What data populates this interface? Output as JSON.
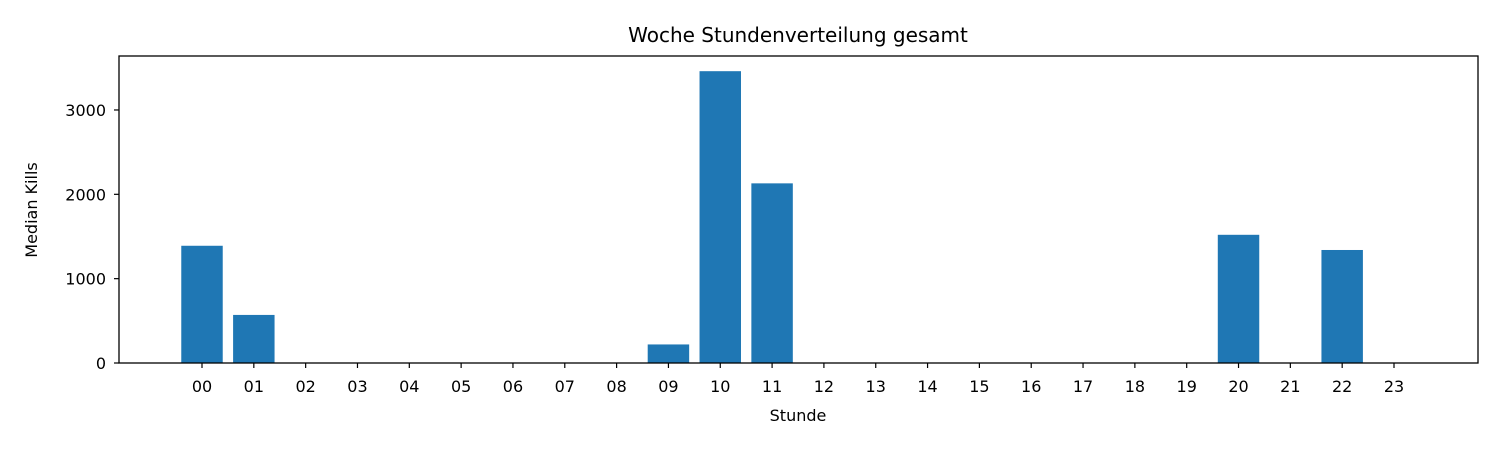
{
  "chart_data": {
    "type": "bar",
    "title": "Woche Stundenverteilung gesamt",
    "xlabel": "Stunde",
    "ylabel": "Median Kills",
    "categories": [
      "00",
      "01",
      "02",
      "03",
      "04",
      "05",
      "06",
      "07",
      "08",
      "09",
      "10",
      "11",
      "12",
      "13",
      "14",
      "15",
      "16",
      "17",
      "18",
      "19",
      "20",
      "21",
      "22",
      "23"
    ],
    "values": [
      1390,
      570,
      0,
      0,
      0,
      0,
      0,
      0,
      0,
      220,
      3460,
      2130,
      0,
      0,
      0,
      0,
      0,
      0,
      0,
      0,
      1520,
      0,
      1340,
      0
    ],
    "ylim": [
      0,
      3640
    ],
    "yticks": [
      0,
      1000,
      2000,
      3000
    ],
    "bar_color": "#1f77b4",
    "grid": false,
    "legend": "none"
  }
}
